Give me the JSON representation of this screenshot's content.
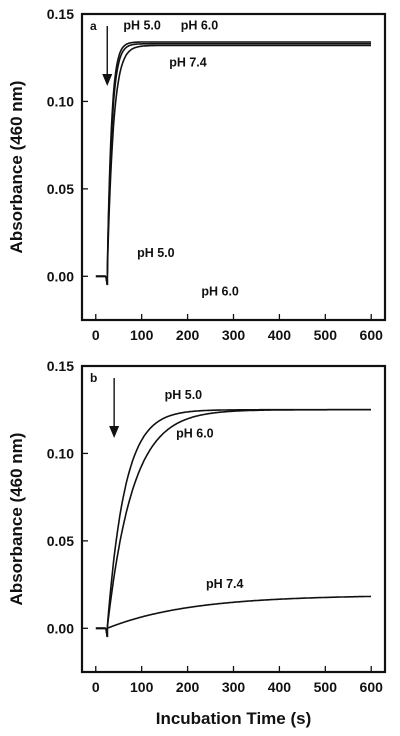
{
  "chart_data": [
    {
      "type": "line",
      "panel_label": "a",
      "ylabel": "Absorbance (460 nm)",
      "xlabel": "",
      "xlim": [
        -30,
        630
      ],
      "ylim": [
        -0.025,
        0.15
      ],
      "xticks": [
        0,
        100,
        200,
        300,
        400,
        500,
        600
      ],
      "yticks": [
        0.0,
        0.05,
        0.1,
        0.15
      ],
      "ytick_labels": [
        "0.00",
        "0.05",
        "0.10",
        "0.15"
      ],
      "arrow_x": 25,
      "series": [
        {
          "name": "pH 5.0",
          "plateau": 0.134,
          "tau": 9,
          "start": 25,
          "end": 600
        },
        {
          "name": "pH 6.0",
          "plateau": 0.133,
          "tau": 10,
          "start": 25,
          "end": 600
        },
        {
          "name": "pH 7.4",
          "plateau": 0.132,
          "tau": 13,
          "start": 25,
          "end": 600
        }
      ],
      "annotations": [
        {
          "text": "pH 5.0",
          "x": 60,
          "y": 0.141
        },
        {
          "text": "pH 6.0",
          "x": 185,
          "y": 0.141
        },
        {
          "text": "pH 7.4",
          "x": 160,
          "y": 0.12
        },
        {
          "text": "pH 5.0",
          "x": 90,
          "y": 0.011
        },
        {
          "text": "pH 6.0",
          "x": 230,
          "y": -0.011
        }
      ]
    },
    {
      "type": "line",
      "panel_label": "b",
      "ylabel": "Absorbance (460 nm)",
      "xlabel": "Incubation Time (s)",
      "xlim": [
        -30,
        630
      ],
      "ylim": [
        -0.025,
        0.15
      ],
      "xticks": [
        0,
        100,
        200,
        300,
        400,
        500,
        600
      ],
      "yticks": [
        0.0,
        0.05,
        0.1,
        0.15
      ],
      "ytick_labels": [
        "0.00",
        "0.05",
        "0.10",
        "0.15"
      ],
      "arrow_x": 40,
      "series": [
        {
          "name": "pH 5.0",
          "plateau": 0.125,
          "tau": 38,
          "start": 25,
          "end": 600
        },
        {
          "name": "pH 6.0",
          "plateau": 0.125,
          "tau": 55,
          "start": 25,
          "end": 600
        },
        {
          "name": "pH 7.4",
          "plateau": 0.019,
          "tau": 180,
          "start": 25,
          "end": 600
        }
      ],
      "annotations": [
        {
          "text": "pH 5.0",
          "x": 150,
          "y": 0.131
        },
        {
          "text": "pH 6.0",
          "x": 175,
          "y": 0.109
        },
        {
          "text": "pH 7.4",
          "x": 240,
          "y": 0.023
        }
      ]
    }
  ],
  "xtick_labels": [
    "0",
    "100",
    "200",
    "300",
    "400",
    "500",
    "600"
  ]
}
